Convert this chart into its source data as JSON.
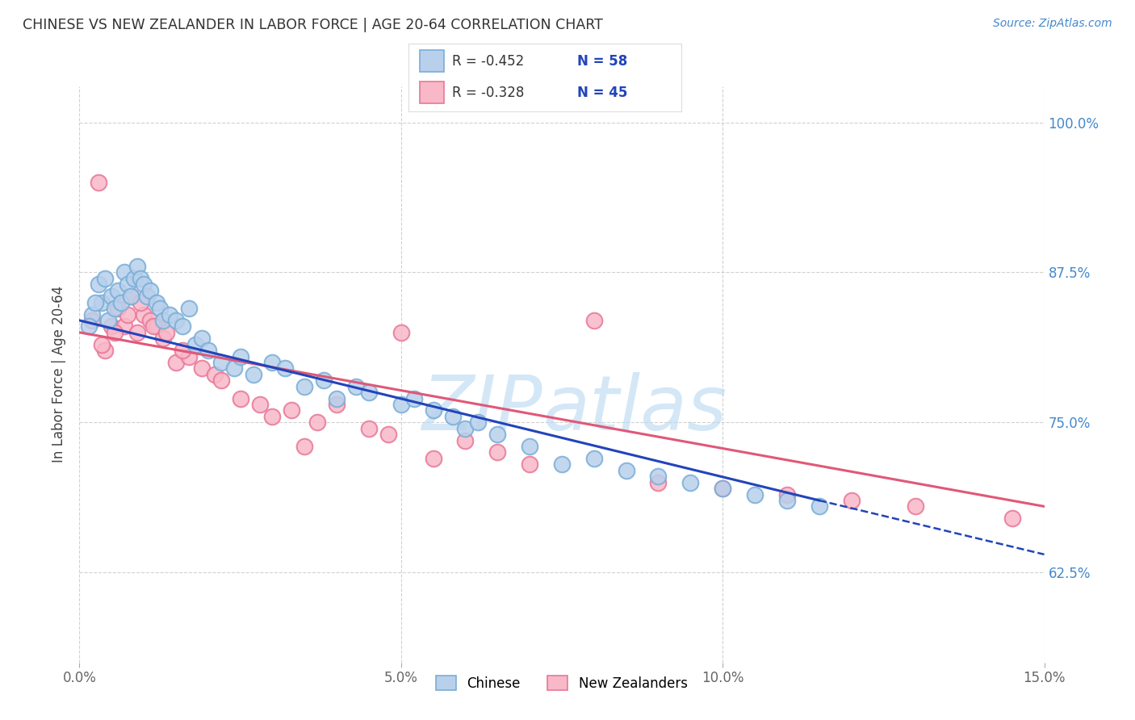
{
  "title": "CHINESE VS NEW ZEALANDER IN LABOR FORCE | AGE 20-64 CORRELATION CHART",
  "source": "Source: ZipAtlas.com",
  "xlabel_tick_vals": [
    0.0,
    5.0,
    10.0,
    15.0
  ],
  "ylabel_tick_vals": [
    62.5,
    75.0,
    87.5,
    100.0
  ],
  "xmin": 0.0,
  "xmax": 15.0,
  "ymin": 55.0,
  "ymax": 103.0,
  "chinese_r": -0.452,
  "chinese_n": 58,
  "nz_r": -0.328,
  "nz_n": 45,
  "watermark": "ZIPatlas",
  "watermark_color": "#b8d8f0",
  "bg_color": "#ffffff",
  "grid_color": "#cccccc",
  "chinese_dot_face": "#b8d0ec",
  "chinese_dot_edge": "#7aaed6",
  "nz_dot_face": "#f8b8c8",
  "nz_dot_edge": "#e87898",
  "blue_line_color": "#2244bb",
  "pink_line_color": "#e05878",
  "right_axis_color": "#4488cc",
  "title_color": "#333333",
  "legend_val_color": "#2244bb",
  "chinese_x": [
    0.2,
    0.3,
    0.35,
    0.4,
    0.45,
    0.5,
    0.55,
    0.6,
    0.65,
    0.7,
    0.75,
    0.8,
    0.85,
    0.9,
    0.95,
    1.0,
    1.05,
    1.1,
    1.2,
    1.25,
    1.3,
    1.4,
    1.5,
    1.6,
    1.7,
    1.8,
    1.9,
    2.0,
    2.2,
    2.4,
    2.5,
    2.7,
    3.0,
    3.2,
    3.5,
    3.8,
    4.0,
    4.3,
    4.5,
    5.0,
    5.2,
    5.5,
    5.8,
    6.0,
    6.5,
    7.0,
    7.5,
    8.0,
    8.5,
    9.0,
    9.5,
    10.0,
    10.5,
    11.0,
    11.5,
    0.15,
    0.25,
    6.2
  ],
  "chinese_y": [
    84.0,
    86.5,
    85.0,
    87.0,
    83.5,
    85.5,
    84.5,
    86.0,
    85.0,
    87.5,
    86.5,
    85.5,
    87.0,
    88.0,
    87.0,
    86.5,
    85.5,
    86.0,
    85.0,
    84.5,
    83.5,
    84.0,
    83.5,
    83.0,
    84.5,
    81.5,
    82.0,
    81.0,
    80.0,
    79.5,
    80.5,
    79.0,
    80.0,
    79.5,
    78.0,
    78.5,
    77.0,
    78.0,
    77.5,
    76.5,
    77.0,
    76.0,
    75.5,
    74.5,
    74.0,
    73.0,
    71.5,
    72.0,
    71.0,
    70.5,
    70.0,
    69.5,
    69.0,
    68.5,
    68.0,
    83.0,
    85.0,
    75.0
  ],
  "nz_x": [
    0.2,
    0.3,
    0.4,
    0.5,
    0.6,
    0.7,
    0.8,
    0.9,
    1.0,
    1.1,
    1.2,
    1.3,
    1.5,
    1.7,
    1.9,
    2.1,
    2.5,
    2.8,
    3.0,
    3.3,
    3.7,
    4.0,
    4.5,
    5.0,
    5.5,
    6.0,
    6.5,
    7.0,
    8.0,
    9.0,
    10.0,
    11.0,
    12.0,
    13.0,
    14.5,
    0.35,
    0.55,
    0.75,
    0.95,
    1.15,
    1.35,
    1.6,
    2.2,
    3.5,
    4.8
  ],
  "nz_y": [
    83.5,
    95.0,
    81.0,
    83.0,
    84.5,
    83.0,
    85.5,
    82.5,
    84.0,
    83.5,
    83.0,
    82.0,
    80.0,
    80.5,
    79.5,
    79.0,
    77.0,
    76.5,
    75.5,
    76.0,
    75.0,
    76.5,
    74.5,
    82.5,
    72.0,
    73.5,
    72.5,
    71.5,
    83.5,
    70.0,
    69.5,
    69.0,
    68.5,
    68.0,
    67.0,
    81.5,
    82.5,
    84.0,
    85.0,
    83.0,
    82.5,
    81.0,
    78.5,
    73.0,
    74.0
  ],
  "blue_line_x0": 0.0,
  "blue_line_y0": 83.5,
  "blue_line_x1": 11.5,
  "blue_line_y1": 68.5,
  "blue_dash_x0": 11.5,
  "blue_dash_y0": 68.5,
  "blue_dash_x1": 15.0,
  "blue_dash_y1": 64.0,
  "pink_line_x0": 0.0,
  "pink_line_y0": 82.5,
  "pink_line_x1": 15.0,
  "pink_line_y1": 68.0
}
